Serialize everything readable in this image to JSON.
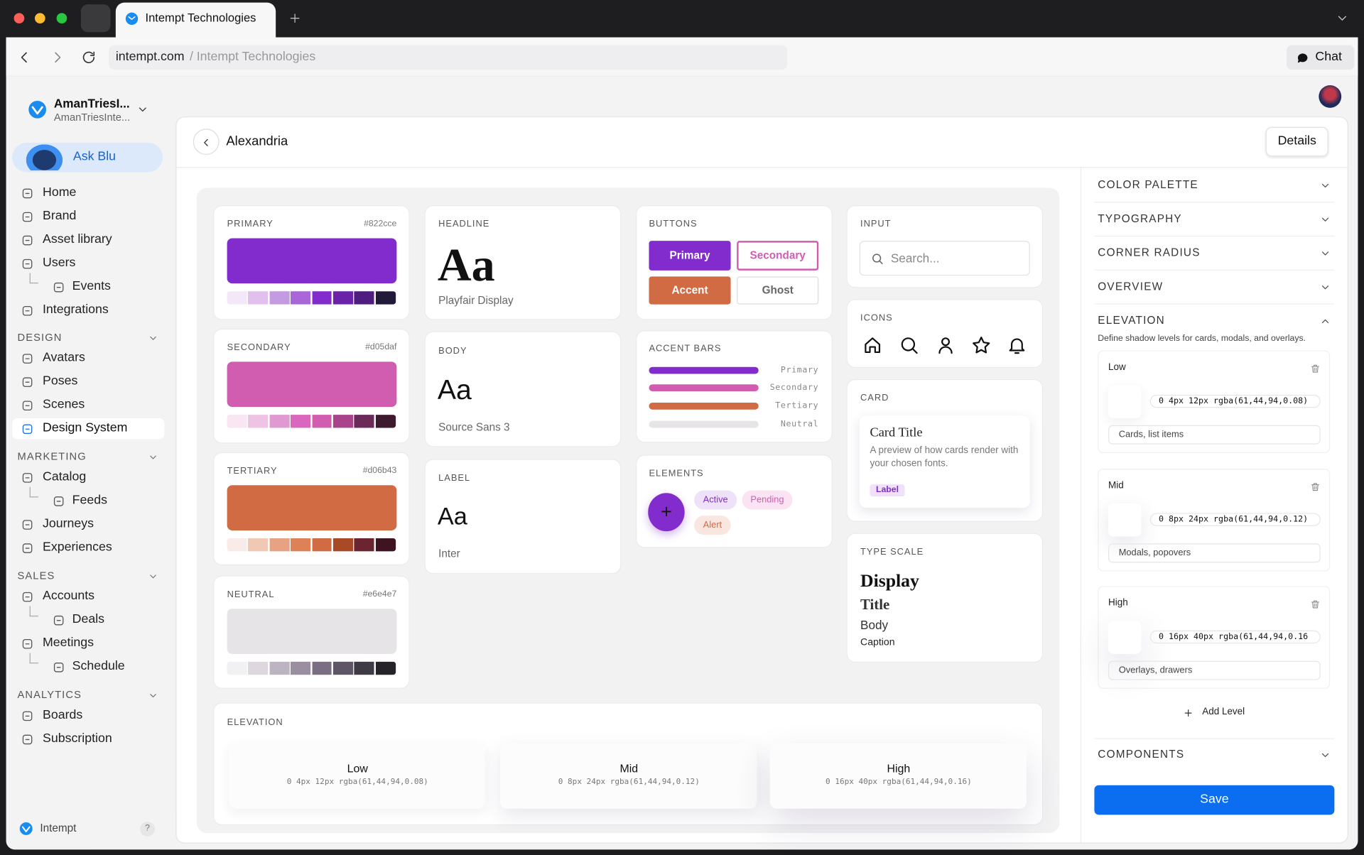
{
  "browser": {
    "tab_title": "Intempt Technologies",
    "url_domain": "intempt.com",
    "url_separator": "/",
    "url_page": "Intempt Technologies",
    "chat": "Chat"
  },
  "sidebar": {
    "account_name": "AmanTriesI...",
    "account_sub": "AmanTriesInte...",
    "ask": "Ask Blu",
    "nav": [
      {
        "label": "Home"
      },
      {
        "label": "Brand"
      },
      {
        "label": "Asset library"
      },
      {
        "label": "Users",
        "children": [
          {
            "label": "Events"
          }
        ]
      },
      {
        "label": "Integrations"
      }
    ],
    "sections": [
      {
        "title": "DESIGN",
        "items": [
          {
            "label": "Avatars"
          },
          {
            "label": "Poses"
          },
          {
            "label": "Scenes"
          },
          {
            "label": "Design System",
            "selected": true
          }
        ]
      },
      {
        "title": "MARKETING",
        "items": [
          {
            "label": "Catalog",
            "children": [
              {
                "label": "Feeds"
              }
            ]
          },
          {
            "label": "Journeys"
          },
          {
            "label": "Experiences"
          }
        ]
      },
      {
        "title": "SALES",
        "items": [
          {
            "label": "Accounts",
            "children": [
              {
                "label": "Deals"
              }
            ]
          },
          {
            "label": "Meetings",
            "children": [
              {
                "label": "Schedule"
              }
            ]
          }
        ]
      },
      {
        "title": "ANALYTICS",
        "items": [
          {
            "label": "Boards"
          },
          {
            "label": "Subscription"
          }
        ]
      }
    ],
    "footer": "Intempt",
    "help": "?"
  },
  "header": {
    "title": "Alexandria",
    "details": "Details"
  },
  "palette": [
    {
      "label": "PRIMARY",
      "hex": "#822cce",
      "shades": [
        "#f3e8f7",
        "#e2c0ee",
        "#c49ae0",
        "#a966d8",
        "#822cce",
        "#6a22a8",
        "#4f1c80",
        "#231a3a"
      ]
    },
    {
      "label": "SECONDARY",
      "hex": "#d05daf",
      "shades": [
        "#f8e6f2",
        "#eec3e4",
        "#e19ad1",
        "#d967bf",
        "#d05daf",
        "#a8438c",
        "#6b2a57",
        "#3d1a2e"
      ]
    },
    {
      "label": "TERTIARY",
      "hex": "#d06b43",
      "shades": [
        "#f8ebe8",
        "#f1c8b4",
        "#e6a282",
        "#dd8257",
        "#d06b43",
        "#a84a25",
        "#6b2530",
        "#3d1420"
      ]
    },
    {
      "label": "NEUTRAL",
      "hex": "#e6e4e7",
      "shades": [
        "#f1f0f2",
        "#dcd8de",
        "#bcb4c0",
        "#9a8fa0",
        "#7a6e82",
        "#5e5566",
        "#3f3b44",
        "#26232b"
      ]
    }
  ],
  "typography": [
    {
      "label": "HEADLINE",
      "sample": "Aa",
      "font": "Playfair Display"
    },
    {
      "label": "BODY",
      "sample": "Aa",
      "font": "Source Sans 3"
    },
    {
      "label": "LABEL",
      "sample": "Aa",
      "font": "Inter"
    }
  ],
  "buttons": {
    "label": "BUTTONS",
    "items": [
      "Primary",
      "Secondary",
      "Accent",
      "Ghost"
    ]
  },
  "accent_bars": {
    "label": "ACCENT BARS",
    "bars": [
      {
        "name": "Primary",
        "color": "#822cce"
      },
      {
        "name": "Secondary",
        "color": "#d05daf"
      },
      {
        "name": "Tertiary",
        "color": "#d06b43"
      },
      {
        "name": "Neutral",
        "color": "#e6e4e7"
      }
    ]
  },
  "elements": {
    "label": "ELEMENTS",
    "fab": "+",
    "chips": [
      "Active",
      "Pending",
      "Alert"
    ]
  },
  "input": {
    "label": "INPUT",
    "placeholder": "Search..."
  },
  "icons": {
    "label": "ICONS"
  },
  "card": {
    "label": "CARD",
    "title": "Card Title",
    "text": "A preview of how cards render with your chosen fonts.",
    "tag": "Label"
  },
  "type_scale": {
    "label": "TYPE SCALE",
    "items": [
      "Display",
      "Title",
      "Body",
      "Caption"
    ]
  },
  "elevation": {
    "label": "ELEVATION",
    "levels": [
      {
        "name": "Low",
        "shadow": "0 4px 12px rgba(61,44,94,0.08)"
      },
      {
        "name": "Mid",
        "shadow": "0 8px 24px rgba(61,44,94,0.12)"
      },
      {
        "name": "High",
        "shadow": "0 16px 40px rgba(61,44,94,0.16)"
      }
    ]
  },
  "panel": {
    "sections": [
      "COLOR PALETTE",
      "TYPOGRAPHY",
      "CORNER RADIUS",
      "OVERVIEW"
    ],
    "elevation": {
      "title": "ELEVATION",
      "description": "Define shadow levels for cards, modals, and overlays.",
      "levels": [
        {
          "name": "Low",
          "value": "0 4px 12px rgba(61,44,94,0.08)",
          "usage": "Cards, list items"
        },
        {
          "name": "Mid",
          "value": "0 8px 24px rgba(61,44,94,0.12)",
          "usage": "Modals, popovers"
        },
        {
          "name": "High",
          "value": "0 16px 40px rgba(61,44,94,0.16",
          "usage": "Overlays, drawers"
        }
      ],
      "add": "Add Level"
    },
    "components": "COMPONENTS",
    "save": "Save"
  }
}
